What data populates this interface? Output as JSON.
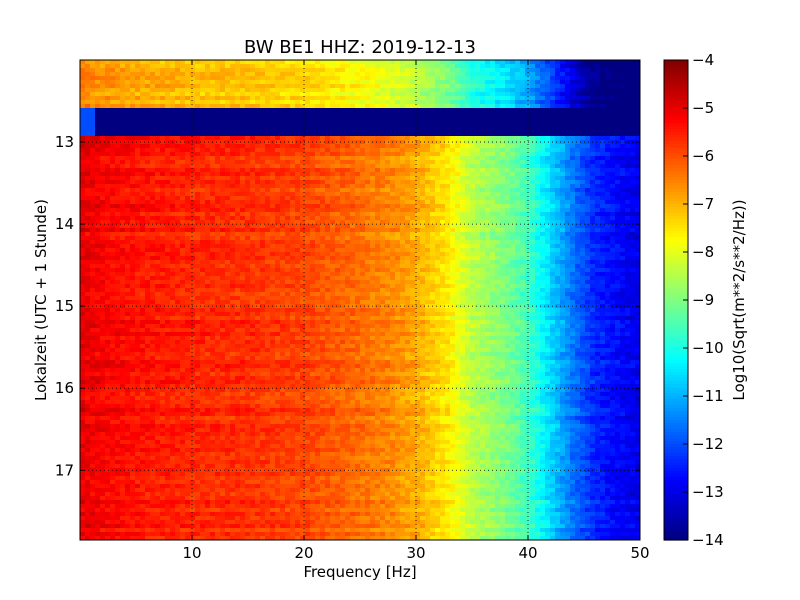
{
  "chart_data": {
    "type": "heatmap",
    "title": "BW BE1 HHZ: 2019-12-13",
    "xlabel": "Frequency [Hz]",
    "ylabel": "Lokalzeit (UTC + 1 Stunde)",
    "xlim": [
      0,
      50
    ],
    "ylim": [
      17.85,
      12.0
    ],
    "y_inverted": true,
    "x_ticks": [
      10,
      20,
      30,
      40,
      50
    ],
    "y_ticks": [
      13,
      14,
      15,
      16,
      17
    ],
    "grid": true,
    "colorbar": {
      "label": "Log10(Sqrt(m**2/s**2/Hz))",
      "range": [
        -14,
        -4
      ],
      "ticks": [
        -4,
        -5,
        -6,
        -7,
        -8,
        -9,
        -10,
        -11,
        -12,
        -13,
        -14
      ],
      "colormap": "jet"
    },
    "spectrum_profile": {
      "frequency_hz": [
        0,
        2,
        5,
        10,
        15,
        20,
        25,
        28,
        30,
        33,
        35,
        38,
        40,
        42,
        44,
        46,
        50
      ],
      "log10_amplitude": [
        -5.0,
        -5.2,
        -5.4,
        -5.6,
        -5.7,
        -5.9,
        -6.3,
        -6.6,
        -6.9,
        -7.6,
        -8.4,
        -9.0,
        -9.6,
        -10.6,
        -11.6,
        -12.4,
        -13.0
      ]
    },
    "data_gap": {
      "start_hour": 12.57,
      "end_hour": 12.91,
      "level": -14
    }
  }
}
